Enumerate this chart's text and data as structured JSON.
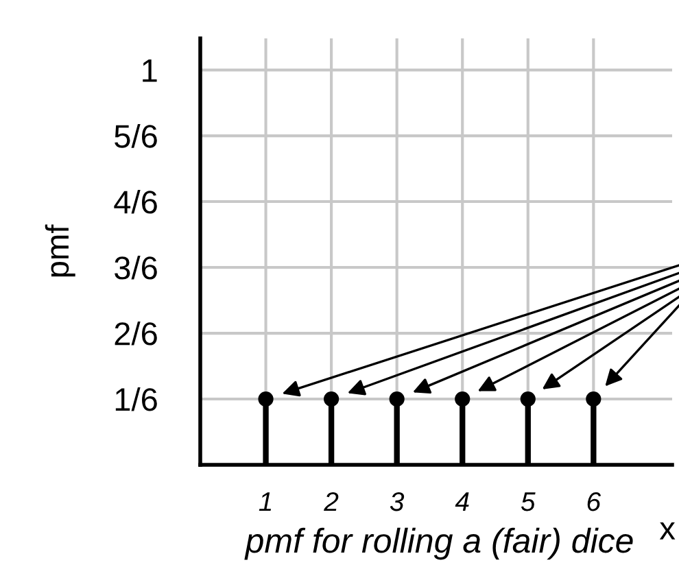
{
  "chart_data": {
    "type": "lollipop",
    "title": "pmf for rolling a (fair) dice",
    "xlabel": "x",
    "ylabel": "pmf",
    "x": [
      1,
      2,
      3,
      4,
      5,
      6
    ],
    "series": [
      {
        "color": "#000000",
        "values": [
          0.1667,
          0.1667,
          0.1667,
          0.1667,
          0.1667,
          0.1667
        ]
      }
    ],
    "xlim": [
      0,
      7.2
    ],
    "xticks": [
      1,
      2,
      3,
      4,
      5,
      6
    ],
    "ylim": [
      0,
      1.08
    ],
    "yticks": [
      {
        "value": 0.1667,
        "label": "1/6"
      },
      {
        "value": 0.3333,
        "label": "2/6"
      },
      {
        "value": 0.5,
        "label": "3/6"
      },
      {
        "value": 0.6667,
        "label": "4/6"
      },
      {
        "value": 0.8333,
        "label": "5/6"
      },
      1
    ],
    "grid": true,
    "marker": "circle"
  }
}
